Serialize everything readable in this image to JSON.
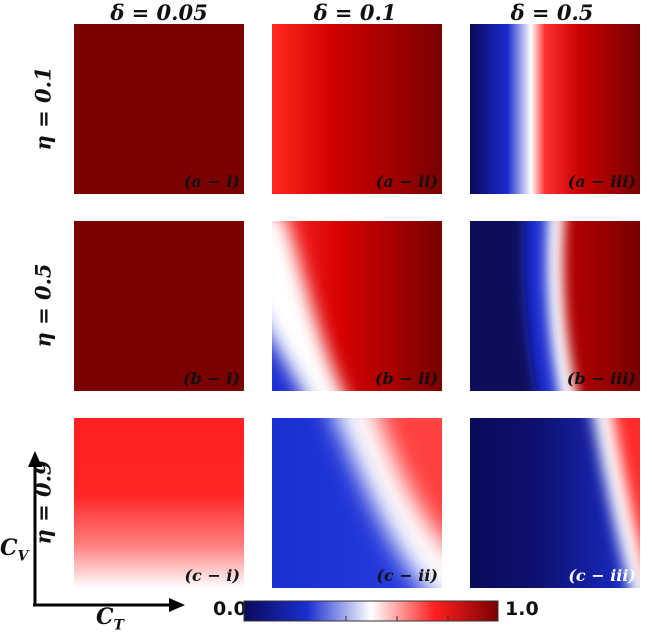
{
  "columns": [
    "δ = 0.05",
    "δ = 0.1",
    "δ = 0.5"
  ],
  "rows": [
    "η = 0.1",
    "η = 0.5",
    "η = 0.9"
  ],
  "panels": [
    {
      "label": "(a − i)",
      "label_color": "#111111"
    },
    {
      "label": "(a − ii)",
      "label_color": "#111111"
    },
    {
      "label": "(a − iii)",
      "label_color": "#111111"
    },
    {
      "label": "(b − i)",
      "label_color": "#111111"
    },
    {
      "label": "(b − ii)",
      "label_color": "#111111"
    },
    {
      "label": "(b − iii)",
      "label_color": "#111111"
    },
    {
      "label": "(c − i)",
      "label_color": "#111111"
    },
    {
      "label": "(c − ii)",
      "label_color": "#111111"
    },
    {
      "label": "(c − iii)",
      "label_color": "#ffffff"
    }
  ],
  "axes": {
    "x": "C_T",
    "y": "C_V"
  },
  "colorbar": {
    "min": "0.0",
    "max": "1.0",
    "colors": [
      "#0a0a5a",
      "#1a2fd0",
      "#ffffff",
      "#ff2020",
      "#7a0000"
    ]
  }
}
